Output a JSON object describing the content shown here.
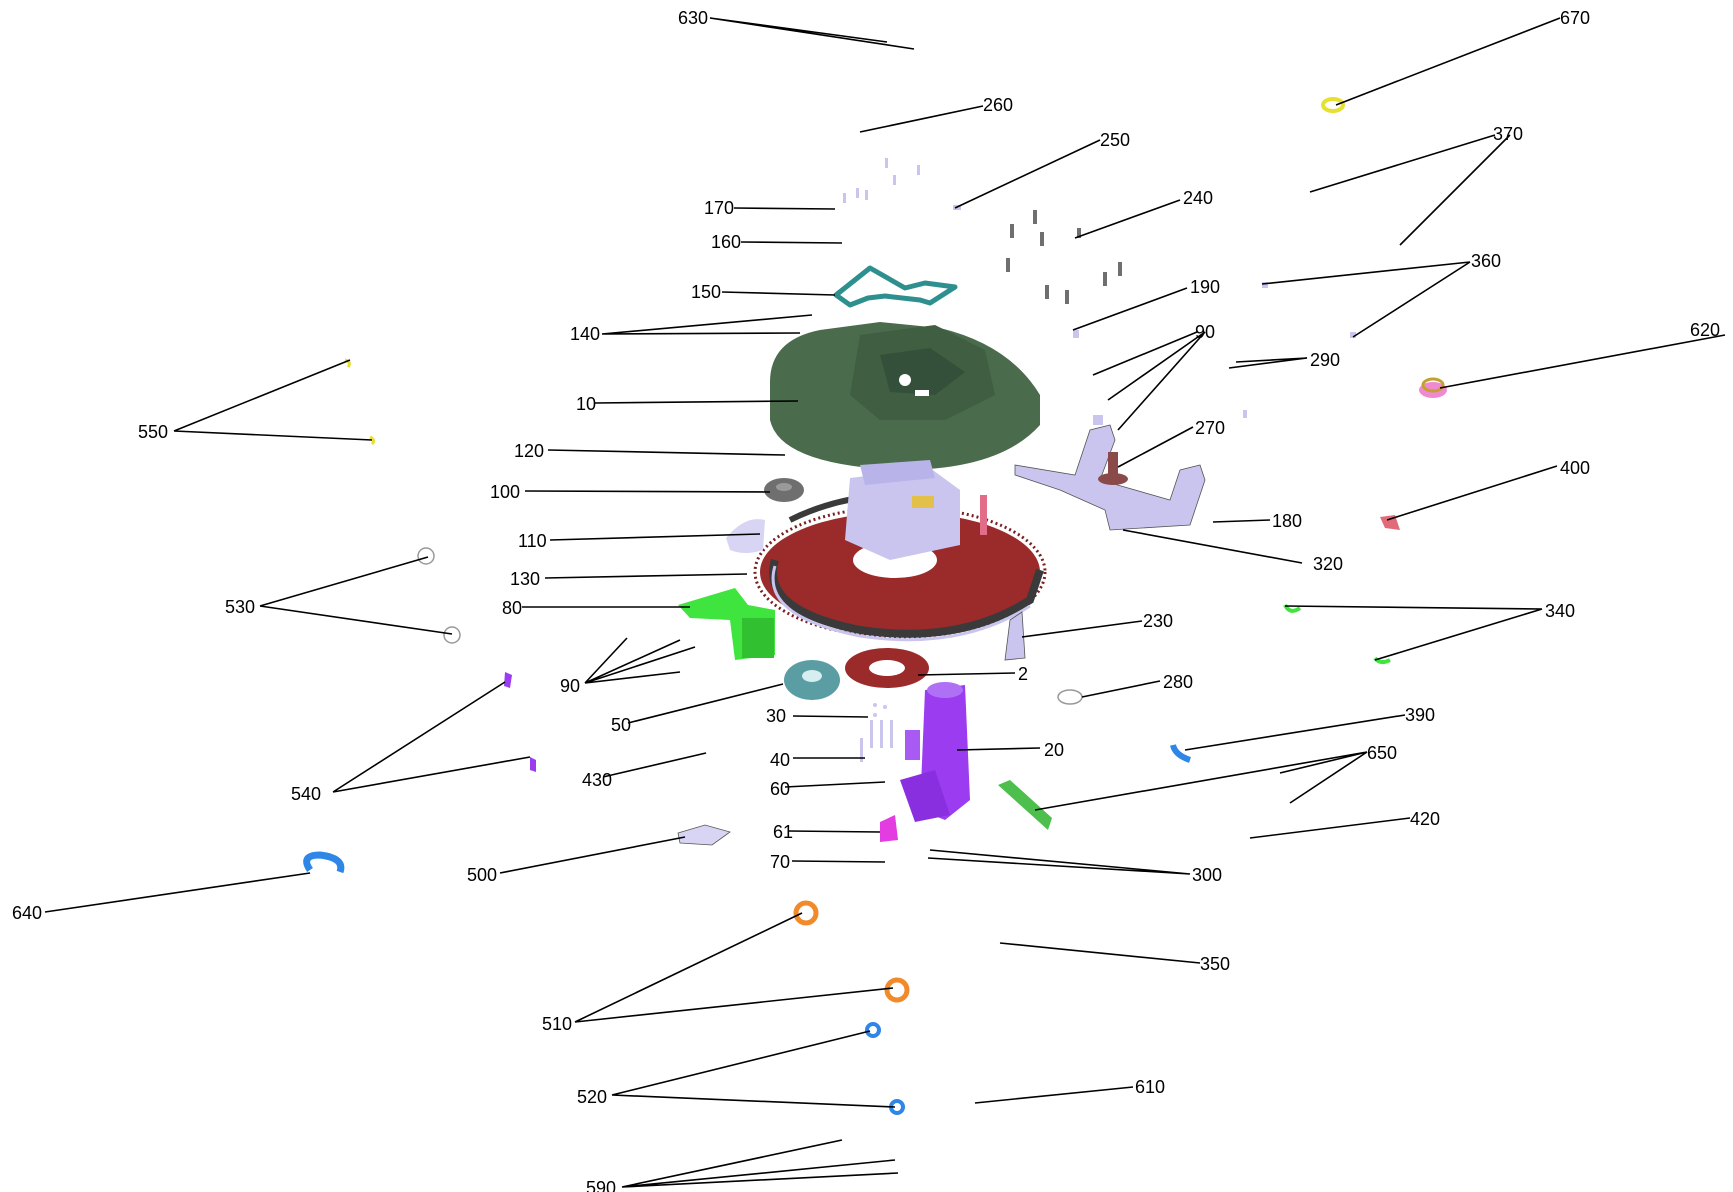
{
  "labels": {
    "l630": "630",
    "l670": "670",
    "l260": "260",
    "l250": "250",
    "l370": "370",
    "l170": "170",
    "l240": "240",
    "l160": "160",
    "l360": "360",
    "l150": "150",
    "l190": "190",
    "l140": "140",
    "l90a": "90",
    "l290": "290",
    "l620": "620",
    "l10": "10",
    "l550": "550",
    "l270": "270",
    "l120": "120",
    "l400": "400",
    "l100": "100",
    "l180": "180",
    "l110": "110",
    "l320": "320",
    "l130": "130",
    "l530": "530",
    "l80": "80",
    "l340": "340",
    "l230": "230",
    "l90b": "90",
    "l2": "2",
    "l280": "280",
    "l50": "50",
    "l30": "30",
    "l390": "390",
    "l20": "20",
    "l650": "650",
    "l40": "40",
    "l430": "430",
    "l540": "540",
    "l60": "60",
    "l420": "420",
    "l61": "61",
    "l500": "500",
    "l70": "70",
    "l300": "300",
    "l640": "640",
    "l350": "350",
    "l510": "510",
    "l610": "610",
    "l520": "520",
    "l590": "590"
  },
  "colors": {
    "housing_green": "#4a6b4c",
    "ring_red": "#9b2b2b",
    "lavender": "#c9c5ef",
    "bright_green": "#3fe43f",
    "teal": "#2e8f8f",
    "purple": "#9b3cf0",
    "magenta": "#e33ce0",
    "blue": "#2e86e6",
    "orange": "#f08a2a",
    "yellow": "#e8e030",
    "gray": "#6f6f6f",
    "pink": "#e26b7a"
  }
}
